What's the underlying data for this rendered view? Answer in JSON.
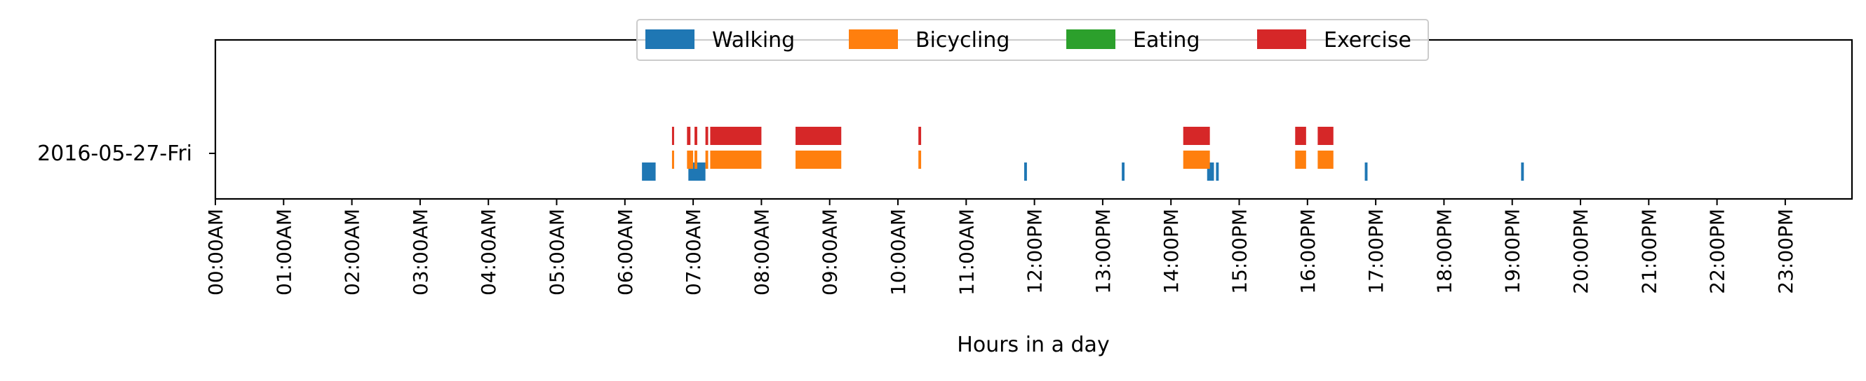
{
  "chart_data": {
    "type": "timeline",
    "xlabel": "Hours in a day",
    "ylabel": "",
    "xlim": [
      0,
      24
    ],
    "x_ticks": [
      {
        "value": 0,
        "label": "00:00AM"
      },
      {
        "value": 1,
        "label": "01:00AM"
      },
      {
        "value": 2,
        "label": "02:00AM"
      },
      {
        "value": 3,
        "label": "03:00AM"
      },
      {
        "value": 4,
        "label": "04:00AM"
      },
      {
        "value": 5,
        "label": "05:00AM"
      },
      {
        "value": 6,
        "label": "06:00AM"
      },
      {
        "value": 7,
        "label": "07:00AM"
      },
      {
        "value": 8,
        "label": "08:00AM"
      },
      {
        "value": 9,
        "label": "09:00AM"
      },
      {
        "value": 10,
        "label": "10:00AM"
      },
      {
        "value": 11,
        "label": "11:00AM"
      },
      {
        "value": 12,
        "label": "12:00PM"
      },
      {
        "value": 13,
        "label": "13:00PM"
      },
      {
        "value": 14,
        "label": "14:00PM"
      },
      {
        "value": 15,
        "label": "15:00PM"
      },
      {
        "value": 16,
        "label": "16:00PM"
      },
      {
        "value": 17,
        "label": "17:00PM"
      },
      {
        "value": 18,
        "label": "18:00PM"
      },
      {
        "value": 19,
        "label": "19:00PM"
      },
      {
        "value": 20,
        "label": "20:00PM"
      },
      {
        "value": 21,
        "label": "21:00PM"
      },
      {
        "value": 22,
        "label": "22:00PM"
      },
      {
        "value": 23,
        "label": "23:00PM"
      }
    ],
    "categories": [
      "2016-05-27-Fri"
    ],
    "legend_position": "top-center",
    "grid": false,
    "series": [
      {
        "name": "Walking",
        "color": "#1f77b4",
        "segments": [
          [
            6.25,
            6.45
          ],
          [
            6.93,
            7.18
          ],
          [
            11.85,
            11.89
          ],
          [
            13.28,
            13.32
          ],
          [
            14.53,
            14.63
          ],
          [
            14.66,
            14.7
          ],
          [
            16.84,
            16.88
          ],
          [
            19.13,
            19.17
          ]
        ]
      },
      {
        "name": "Bicycling",
        "color": "#ff7f0e",
        "segments": [
          [
            6.69,
            6.72
          ],
          [
            6.91,
            7.0
          ],
          [
            7.02,
            7.06
          ],
          [
            7.18,
            7.22
          ],
          [
            7.25,
            8.0
          ],
          [
            8.5,
            9.17
          ],
          [
            10.3,
            10.34
          ],
          [
            14.18,
            14.57
          ],
          [
            15.82,
            15.98
          ],
          [
            16.15,
            16.38
          ]
        ]
      },
      {
        "name": "Eating",
        "color": "#2ca02c",
        "segments": []
      },
      {
        "name": "Exercise",
        "color": "#d62728",
        "segments": [
          [
            6.69,
            6.72
          ],
          [
            6.91,
            6.96
          ],
          [
            7.02,
            7.06
          ],
          [
            7.18,
            7.22
          ],
          [
            7.25,
            8.0
          ],
          [
            8.5,
            9.17
          ],
          [
            10.3,
            10.34
          ],
          [
            14.18,
            14.57
          ],
          [
            15.82,
            15.98
          ],
          [
            16.15,
            16.38
          ]
        ]
      }
    ]
  }
}
